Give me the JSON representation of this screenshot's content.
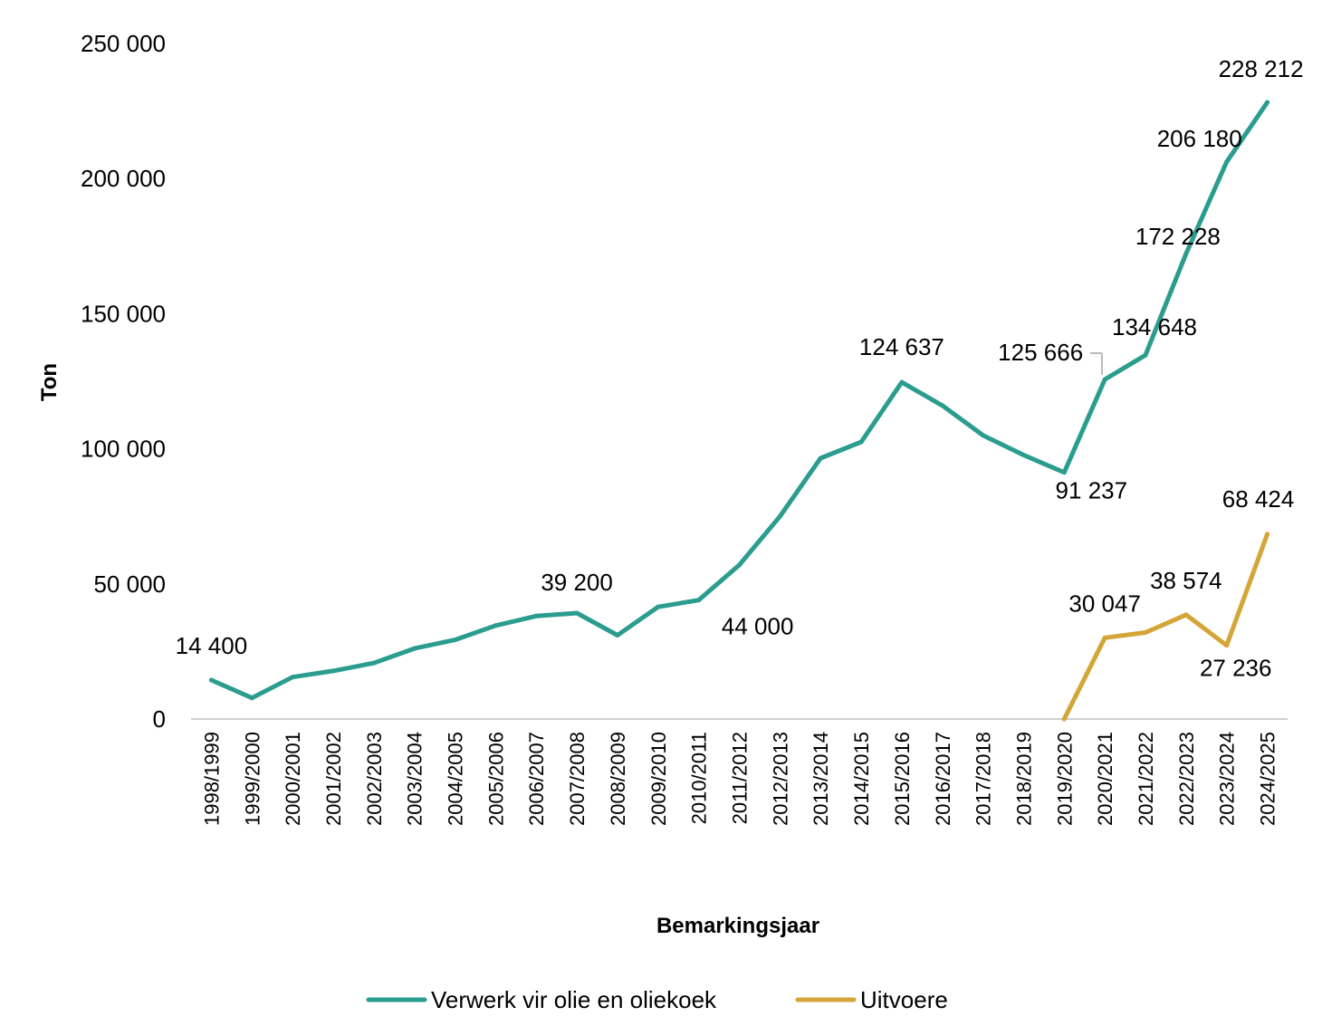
{
  "chart_data": {
    "type": "line",
    "title": "",
    "xlabel": "Bemarkingsjaar",
    "ylabel": "Ton",
    "ylim": [
      0,
      250000
    ],
    "yticks": [
      0,
      50000,
      100000,
      150000,
      200000,
      250000
    ],
    "ytick_labels": [
      "0",
      "50 000",
      "100 000",
      "150 000",
      "200 000",
      "250 000"
    ],
    "grid": false,
    "legend_position": "bottom",
    "categories": [
      "1998/1999",
      "1999/2000",
      "2000/2001",
      "2001/2002",
      "2002/2003",
      "2003/2004",
      "2004/2005",
      "2005/2006",
      "2006/2007",
      "2007/2008",
      "2008/2009",
      "2009/2010",
      "2010/2011",
      "2011/2012",
      "2012/2013",
      "2013/2014",
      "2014/2015",
      "2015/2016",
      "2016/2017",
      "2017/2018",
      "2018/2019",
      "2019/2020",
      "2020/2021",
      "2021/2022",
      "2022/2023",
      "2023/2024",
      "2024/2025"
    ],
    "series": [
      {
        "name": "Verwerk vir olie en oliekoek",
        "color": "#2a9d8f",
        "values": [
          14400,
          7800,
          15500,
          17800,
          20700,
          26100,
          29300,
          34600,
          38100,
          39200,
          31000,
          41500,
          44000,
          57000,
          75000,
          96500,
          102500,
          124637,
          116000,
          105000,
          97700,
          91237,
          125666,
          134648,
          172228,
          206180,
          228212
        ],
        "labels": [
          {
            "index": 0,
            "text": "14 400"
          },
          {
            "index": 9,
            "text": "39 200"
          },
          {
            "index": 12,
            "text": "44 000"
          },
          {
            "index": 17,
            "text": "124 637"
          },
          {
            "index": 21,
            "text": "91 237"
          },
          {
            "index": 22,
            "text": "125 666"
          },
          {
            "index": 23,
            "text": "134 648"
          },
          {
            "index": 24,
            "text": "172 228"
          },
          {
            "index": 25,
            "text": "206 180"
          },
          {
            "index": 26,
            "text": "228 212"
          }
        ]
      },
      {
        "name": "Uitvoere",
        "color": "#d4a537",
        "values": [
          null,
          null,
          null,
          null,
          null,
          null,
          null,
          null,
          null,
          null,
          null,
          null,
          null,
          null,
          null,
          null,
          null,
          null,
          null,
          null,
          null,
          0,
          30047,
          32000,
          38574,
          27236,
          68424
        ],
        "labels": [
          {
            "index": 22,
            "text": "30 047"
          },
          {
            "index": 24,
            "text": "38 574"
          },
          {
            "index": 25,
            "text": "27 236"
          },
          {
            "index": 26,
            "text": "68 424"
          }
        ]
      }
    ]
  }
}
